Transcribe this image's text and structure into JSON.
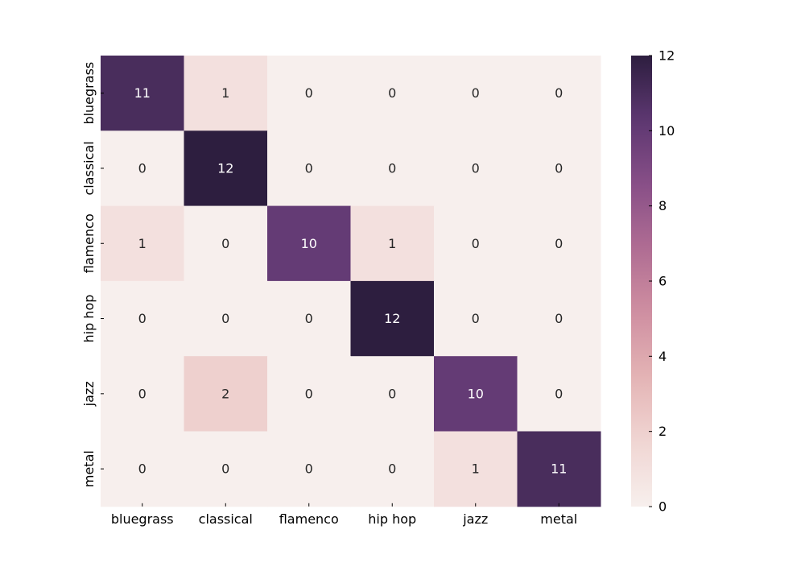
{
  "chart_data": {
    "type": "heatmap",
    "title": "",
    "xlabel": "",
    "ylabel": "",
    "x_categories": [
      "bluegrass",
      "classical",
      "flamenco",
      "hip hop",
      "jazz",
      "metal"
    ],
    "y_categories": [
      "bluegrass",
      "classical",
      "flamenco",
      "hip hop",
      "jazz",
      "metal"
    ],
    "values": [
      [
        11,
        1,
        0,
        0,
        0,
        0
      ],
      [
        0,
        12,
        0,
        0,
        0,
        0
      ],
      [
        1,
        0,
        10,
        1,
        0,
        0
      ],
      [
        0,
        0,
        0,
        12,
        0,
        0
      ],
      [
        0,
        2,
        0,
        0,
        10,
        0
      ],
      [
        0,
        0,
        0,
        0,
        1,
        11
      ]
    ],
    "annotated": true,
    "vmin": 0,
    "vmax": 12,
    "colorbar": {
      "ticks": [
        0,
        2,
        4,
        6,
        8,
        10,
        12
      ],
      "placement": "right"
    },
    "colormap": {
      "name": "cubehelix-light",
      "stops": [
        "#f7efed",
        "#f0d6d3",
        "#e4b4b5",
        "#cf8fa1",
        "#b06d93",
        "#884f87",
        "#5d3771",
        "#2d1e3f"
      ]
    },
    "grid": false
  }
}
